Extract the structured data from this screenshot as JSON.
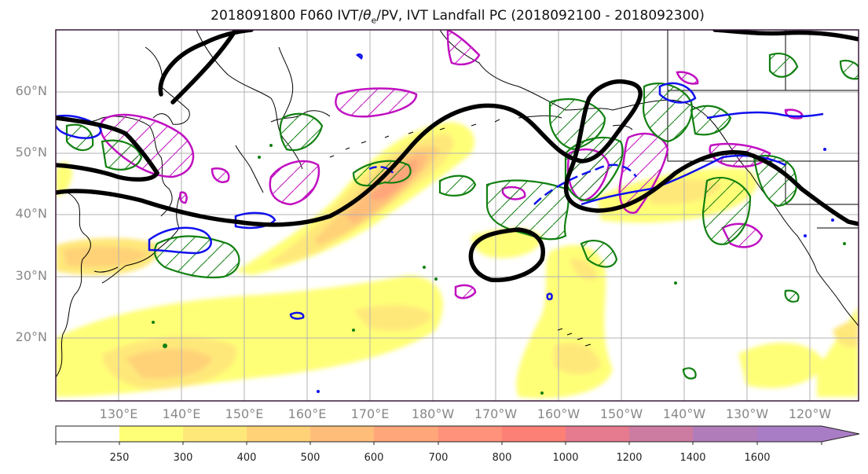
{
  "title": "2018091800 F060 IVT/θe/PV, IVT Landfall PC (2018092100 - 2018092300)",
  "title_parts": {
    "prefix": "2018091800 F060 IVT/",
    "theta": "θ",
    "sub": "e",
    "suffix": "/PV, IVT Landfall PC (2018092100 - 2018092300)"
  },
  "map": {
    "lat_labels": [
      "60°N",
      "50°N",
      "40°N",
      "30°N",
      "20°N"
    ],
    "lon_labels": [
      "130°E",
      "140°E",
      "150°E",
      "160°E",
      "170°E",
      "180°W",
      "170°W",
      "160°W",
      "150°W",
      "140°W",
      "130°W",
      "120°W"
    ],
    "contour_colors": {
      "theta_e": "#000000",
      "green": "#118011",
      "blue": "#1010ee",
      "magenta": "#c010c0"
    },
    "land_color": "#000000",
    "grid_color": "#b0b0b0"
  },
  "colorbar": {
    "levels": [
      "250",
      "300",
      "400",
      "500",
      "600",
      "700",
      "800",
      "1000",
      "1200",
      "1400",
      "1600"
    ],
    "colors": [
      "#ffffff",
      "#ffff77",
      "#ffe87a",
      "#ffd278",
      "#ffbd7a",
      "#ffa67a",
      "#ff927a",
      "#fd8077",
      "#e67a8e",
      "#cc7ba1",
      "#b17cba",
      "#a97cc6"
    ]
  }
}
